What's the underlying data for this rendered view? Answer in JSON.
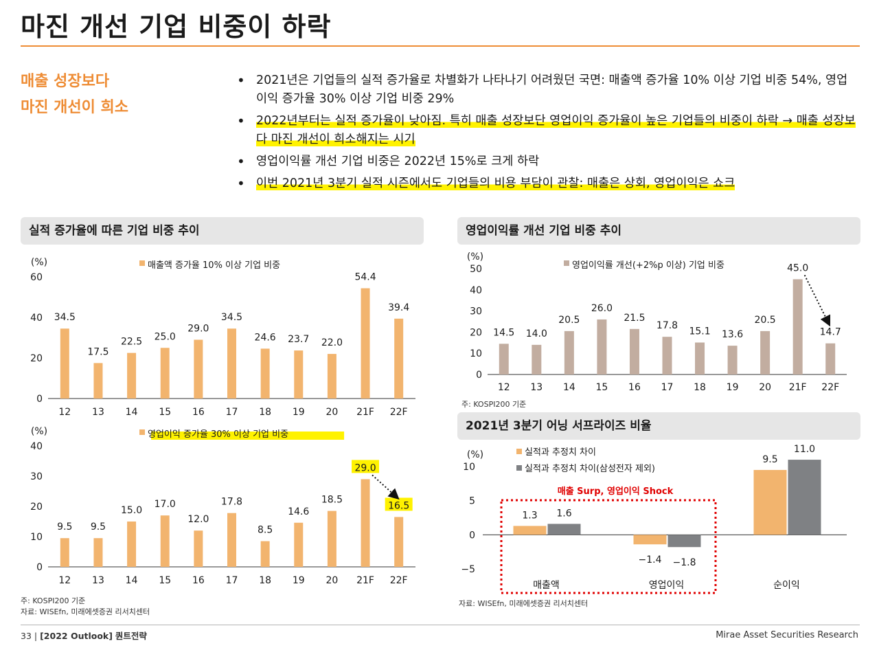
{
  "page": {
    "title": "마진 개선 기업 비중이 하락",
    "tagline": [
      "매출 성장보다",
      "마진 개선이 희소"
    ],
    "bullets": [
      {
        "text": "2021년은 기업들의 실적 증가율로 차별화가 나타나기 어려웠던 국면: 매출액 증가율 10% 이상 기업 비중 54%, 영업이익 증가율 30% 이상 기업 비중 29%",
        "highlight": false
      },
      {
        "text": "2022년부터는 실적 증가율이 낮아짐. 특히 매출 성장보단 영업이익 증가율이 높은 기업들의 비중이 하락 → 매출 성장보다 마진 개선이 희소해지는 시기",
        "highlight": true
      },
      {
        "text": "영업이익률 개선 기업 비중은 2022년 15%로 크게 하락",
        "highlight": false
      },
      {
        "text": "이번 2021년 3분기 실적 시즌에서도 기업들의 비용 부담이 관찰: 매출은 상회, 영업이익은 쇼크",
        "highlight": true
      }
    ],
    "panel_left_title": "실적 증가율에 따른 기업 비중 추이",
    "panel_right_top_title": "영업이익률 개선 기업 비중 추이",
    "panel_right_bottom_title": "2021년 3분기 어닝 서프라이즈 비율",
    "note_left_1": "주: KOSPI200 기준",
    "note_left_2": "자료: WISEfn, 미래에셋증권 리서치센터",
    "note_right_top": "주: KOSPI200 기준",
    "note_right_bottom": "자료: WISEfn, 미래에셋증권 리서치센터",
    "footer_page": "33",
    "footer_sep": "|",
    "footer_doc": "[2022 Outlook]",
    "footer_section": "퀀트전략",
    "footer_right": "Mirae Asset Securities Research"
  },
  "colors": {
    "accent": "#ee8c34",
    "bar_orange": "#f2b46e",
    "bar_taupe": "#c2ada0",
    "bar_gray": "#7f8184",
    "highlight": "#fff200",
    "dotted_red": "#e00000"
  },
  "chart_data": [
    {
      "id": "revenue",
      "type": "bar",
      "unit_label": "(%)",
      "categories": [
        "12",
        "13",
        "14",
        "15",
        "16",
        "17",
        "18",
        "19",
        "20",
        "21F",
        "22F"
      ],
      "series": [
        {
          "name": "매출액 증가율 10% 이상 기업 비중",
          "values": [
            34.5,
            17.5,
            22.5,
            25.0,
            29.0,
            34.5,
            24.6,
            23.7,
            22.0,
            54.4,
            39.4
          ]
        }
      ],
      "ylim": [
        0,
        60
      ],
      "yticks": [
        0,
        20,
        40,
        60
      ]
    },
    {
      "id": "op_profit",
      "type": "bar",
      "unit_label": "(%)",
      "categories": [
        "12",
        "13",
        "14",
        "15",
        "16",
        "17",
        "18",
        "19",
        "20",
        "21F",
        "22F"
      ],
      "series": [
        {
          "name": "영업이익 증가율 30% 이상 기업 비중",
          "values": [
            9.5,
            9.5,
            15.0,
            17.0,
            12.0,
            17.8,
            8.5,
            14.6,
            18.5,
            29.0,
            16.5
          ]
        }
      ],
      "ylim": [
        0,
        40
      ],
      "yticks": [
        0,
        10,
        20,
        30,
        40
      ],
      "legend_highlighted": true,
      "highlighted_points": [
        "21F",
        "22F"
      ],
      "annotation": "arrow from 21F to 22F"
    },
    {
      "id": "margin",
      "type": "bar",
      "unit_label": "(%)",
      "categories": [
        "12",
        "13",
        "14",
        "15",
        "16",
        "17",
        "18",
        "19",
        "20",
        "21F",
        "22F"
      ],
      "series": [
        {
          "name": "영업이익률 개선(+2%p 이상) 기업 비중",
          "values": [
            14.5,
            14.0,
            20.5,
            26.0,
            21.5,
            17.8,
            15.1,
            13.6,
            20.5,
            45.0,
            14.7
          ]
        }
      ],
      "ylim": [
        0,
        50
      ],
      "yticks": [
        0,
        10,
        20,
        30,
        40,
        50
      ],
      "annotation": "arrow from 21F to 22F"
    },
    {
      "id": "surprise",
      "type": "bar",
      "unit_label": "(%)",
      "categories": [
        "매출액",
        "영업이익",
        "순이익"
      ],
      "series": [
        {
          "name": "실적과 추정치 차이",
          "values": [
            1.3,
            -1.4,
            9.5
          ]
        },
        {
          "name": "실적과 추정치 차이(삼성전자 제외)",
          "values": [
            1.6,
            -1.8,
            11.0
          ]
        }
      ],
      "value_labels": [
        [
          "1.3",
          "−1.4",
          "9.5"
        ],
        [
          "1.6",
          "−1.8",
          "11.0"
        ]
      ],
      "ylim": [
        -5,
        10
      ],
      "yticks": [
        -5,
        0,
        5,
        10
      ],
      "ytick_labels": [
        "−5",
        "0",
        "5",
        "10"
      ],
      "annotation": "매출 Surp, 영업이익 Shock"
    }
  ]
}
